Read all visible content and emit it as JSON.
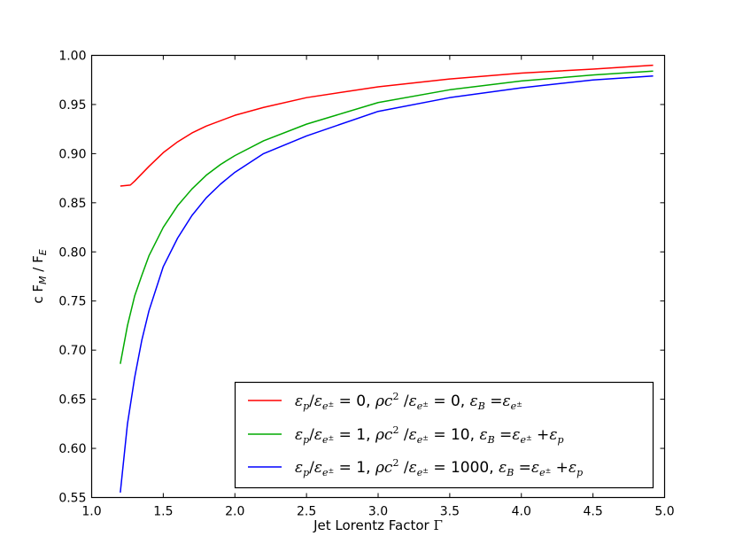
{
  "chart_data": {
    "type": "line",
    "title": "",
    "xlabel": "Jet Lorentz Factor Γ",
    "ylabel": "c F_M / F_E",
    "xlim": [
      1.0,
      5.0
    ],
    "ylim": [
      0.55,
      1.0
    ],
    "xticks": [
      "1.0",
      "1.5",
      "2.0",
      "2.5",
      "3.0",
      "3.5",
      "4.0",
      "4.5",
      "5.0"
    ],
    "yticks": [
      "0.55",
      "0.60",
      "0.65",
      "0.70",
      "0.75",
      "0.80",
      "0.85",
      "0.90",
      "0.95",
      "1.00"
    ],
    "grid": false,
    "legend_position": "lower-right",
    "series": [
      {
        "name": "ε_p/ε_e± = 0, ρc²/ε_e± = 0, ε_B = ε_e±",
        "color": "#ff0000",
        "x": [
          1.2,
          1.27,
          1.3,
          1.4,
          1.5,
          1.6,
          1.7,
          1.8,
          2.0,
          2.2,
          2.5,
          3.0,
          3.5,
          4.0,
          4.5,
          4.92
        ],
        "y": [
          0.867,
          0.868,
          0.872,
          0.887,
          0.901,
          0.912,
          0.921,
          0.928,
          0.939,
          0.947,
          0.957,
          0.968,
          0.976,
          0.982,
          0.986,
          0.99
        ]
      },
      {
        "name": "ε_p/ε_e± = 1, ρc²/ε_e± = 10, ε_B = ε_e± + ε_p",
        "color": "#00aa00",
        "x": [
          1.2,
          1.25,
          1.3,
          1.35,
          1.4,
          1.5,
          1.6,
          1.7,
          1.8,
          1.9,
          2.0,
          2.2,
          2.5,
          3.0,
          3.5,
          4.0,
          4.5,
          4.92
        ],
        "y": [
          0.686,
          0.725,
          0.755,
          0.776,
          0.796,
          0.825,
          0.847,
          0.864,
          0.878,
          0.889,
          0.898,
          0.913,
          0.93,
          0.952,
          0.965,
          0.974,
          0.98,
          0.984
        ]
      },
      {
        "name": "ε_p/ε_e± = 1, ρc²/ε_e± = 1000, ε_B = ε_e± + ε_p",
        "color": "#0000ff",
        "x": [
          1.2,
          1.25,
          1.3,
          1.35,
          1.4,
          1.5,
          1.6,
          1.7,
          1.8,
          1.9,
          2.0,
          2.2,
          2.5,
          3.0,
          3.5,
          4.0,
          4.5,
          4.92
        ],
        "y": [
          0.555,
          0.625,
          0.672,
          0.71,
          0.74,
          0.785,
          0.814,
          0.837,
          0.855,
          0.869,
          0.881,
          0.9,
          0.918,
          0.943,
          0.957,
          0.967,
          0.975,
          0.979
        ]
      }
    ]
  }
}
